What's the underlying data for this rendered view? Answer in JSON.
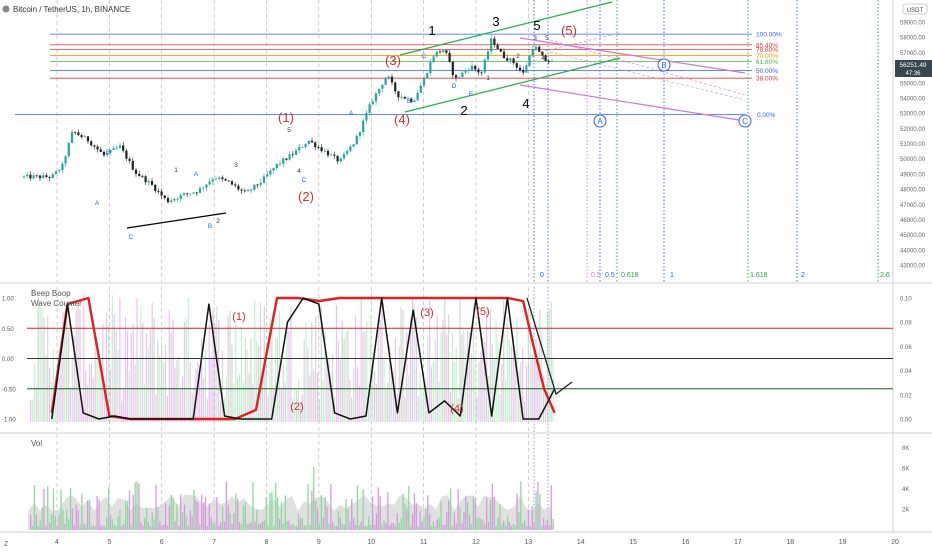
{
  "header": {
    "title": "Bitcoin / TetherUS, 1h, BINANCE"
  },
  "price_axis": {
    "unit_badge": "USDT",
    "labels": [
      "59000.00",
      "58000.00",
      "57000.00",
      "56000.00",
      "55000.00",
      "54000.00",
      "53000.00",
      "52000.00",
      "51000.00",
      "50000.00",
      "49000.00",
      "48000.00",
      "47000.00",
      "46000.00",
      "45000.00",
      "44000.00",
      "43000.00"
    ],
    "current_price": "56251.49",
    "countdown": "47:36"
  },
  "date_axis": {
    "labels": [
      "4",
      "5",
      "6",
      "7",
      "8",
      "9",
      "10",
      "11",
      "12",
      "13",
      "14",
      "15",
      "16",
      "17",
      "18",
      "19",
      "20"
    ]
  },
  "colors": {
    "up_candle": "#26a69a",
    "down_candle": "#222222",
    "fib_blue": "#2962ff",
    "fib_red": "#e53935",
    "fib_orange": "#ff9800",
    "fib_green": "#4caf50",
    "channel": "#22b14c",
    "fan": "#cc77dd",
    "wave_red": "#d32f2f",
    "wave_black": "#000000",
    "osc_red": "#e02020",
    "osc_black": "#111111"
  },
  "fib_levels": [
    {
      "label": "100.00%",
      "price": 58200,
      "color": "#2962ff"
    },
    {
      "label": "85.40%",
      "price": 57500,
      "color": "#e53935"
    },
    {
      "label": "78.60%",
      "price": 57200,
      "color": "#e53935"
    },
    {
      "label": "70.00%",
      "price": 56800,
      "color": "#ff9800"
    },
    {
      "label": "61.80%",
      "price": 56400,
      "color": "#4caf50"
    },
    {
      "label": "50.00%",
      "price": 55800,
      "color": "#2962ff"
    },
    {
      "label": "38.00%",
      "price": 55300,
      "color": "#e53935"
    },
    {
      "label": "0.00%",
      "price": 52900,
      "color": "#2962ff"
    }
  ],
  "time_fib_labels": [
    "0",
    "0.5",
    "0.5",
    "0.618",
    "1",
    "1.618",
    "2",
    "2.6"
  ],
  "circle_labels": [
    "A",
    "B",
    "C"
  ],
  "wave_labels_main_red": [
    "(1)",
    "(2)",
    "(3)",
    "(4)",
    "(5)"
  ],
  "wave_labels_main_black": [
    "1",
    "2",
    "3",
    "4",
    "5"
  ],
  "small_wave_labels": [
    "A",
    "B",
    "C",
    "A",
    "B",
    "C",
    "1",
    "2",
    "3",
    "4",
    "5",
    "A",
    "B",
    "C",
    "D",
    "E",
    "1",
    "2",
    "3",
    "4",
    "5"
  ],
  "oscillator": {
    "title": "Beep Boop",
    "subtitle": "Wave Counter",
    "left_labels": [
      "1.00",
      "0.50",
      "0.00",
      "-0.50",
      "-1.00"
    ],
    "right_labels": [
      "0.10",
      "0.08",
      "0.06",
      "0.04",
      "0.02",
      "0.00"
    ],
    "wave_labels": [
      "(1)",
      "(2)",
      "(3)",
      "(4)",
      "(5)"
    ]
  },
  "volume": {
    "title": "Vol",
    "right_labels": [
      "8K",
      "6K",
      "4K",
      "2K"
    ]
  },
  "chart_data": {
    "type": "candlestick",
    "title": "Bitcoin / TetherUS, 1h, BINANCE",
    "x_axis": "date (day of month)",
    "ylim": [
      43000,
      60000
    ],
    "series": [
      {
        "name": "price_path",
        "x": [
          3.9,
          4.1,
          4.3,
          4.6,
          4.9,
          5.2,
          5.5,
          5.8,
          6.1,
          6.4,
          6.7,
          7.0,
          7.3,
          7.6,
          7.9,
          8.2,
          8.5,
          8.8,
          9.1,
          9.4,
          9.7,
          10.0,
          10.3,
          10.5,
          10.8,
          11.0,
          11.2,
          11.4,
          11.6,
          11.9,
          12.1,
          12.3,
          12.5,
          12.7,
          12.9,
          13.1,
          13.3,
          13.5
        ],
        "y": [
          48800,
          49500,
          51800,
          51200,
          50200,
          50800,
          49100,
          48300,
          47200,
          47600,
          47900,
          48800,
          48400,
          47700,
          48500,
          49600,
          50300,
          51200,
          50500,
          49800,
          51200,
          53700,
          55500,
          54200,
          53800,
          55200,
          56900,
          57200,
          55200,
          56100,
          55600,
          57900,
          56800,
          56400,
          55600,
          57500,
          56500,
          56300
        ]
      },
      {
        "name": "oscillator_black",
        "x": [
          3.9,
          4.2,
          4.5,
          4.8,
          5.1,
          5.4,
          5.7,
          6.0,
          6.3,
          6.6,
          6.9,
          7.2,
          7.5,
          7.8,
          8.1,
          8.4,
          8.7,
          9.0,
          9.3,
          9.6,
          9.9,
          10.2,
          10.5,
          10.8,
          11.1,
          11.4,
          11.7,
          12.0,
          12.3,
          12.6,
          12.9,
          13.2,
          13.5
        ],
        "y": [
          -1,
          0.9,
          -0.9,
          -1,
          -0.95,
          -1,
          -1,
          -1,
          -1,
          -1,
          0.9,
          -0.95,
          -1,
          -1,
          -1,
          0.6,
          1,
          0.9,
          -0.9,
          -1,
          -0.95,
          1,
          -0.9,
          0.8,
          -0.9,
          -0.7,
          -0.95,
          1,
          -0.95,
          1,
          -1,
          -1,
          -0.5
        ]
      },
      {
        "name": "oscillator_red",
        "x": [
          3.9,
          4.2,
          4.6,
          5.0,
          5.4,
          5.8,
          6.2,
          6.6,
          7.0,
          7.4,
          7.8,
          8.2,
          8.6,
          9.0,
          9.4,
          9.8,
          10.2,
          10.6,
          11.0,
          11.4,
          11.8,
          12.2,
          12.6,
          12.9,
          13.1,
          13.3,
          13.5
        ],
        "y": [
          -0.9,
          0.9,
          1,
          -0.95,
          -1,
          -1,
          -1,
          -1,
          -1,
          -1,
          -0.85,
          1,
          1,
          0.95,
          1,
          1,
          1,
          1,
          1,
          1,
          1,
          1,
          1,
          0.95,
          0.2,
          -0.5,
          -0.9
        ]
      }
    ],
    "oscillator_levels": [
      1.0,
      0.5,
      0.0,
      -0.5,
      -1.0
    ],
    "grid": true,
    "legend": "none"
  }
}
